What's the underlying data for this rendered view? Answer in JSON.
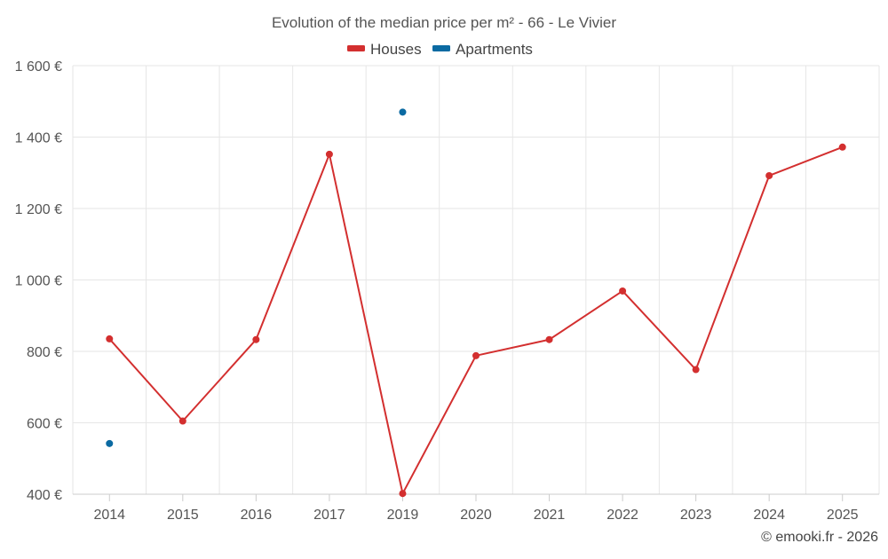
{
  "chart_data": {
    "type": "line",
    "title": "Evolution of the median price per m² - 66 - Le Vivier",
    "categories": [
      "2014",
      "2015",
      "2016",
      "2017",
      "2019",
      "2020",
      "2021",
      "2022",
      "2023",
      "2024",
      "2025"
    ],
    "ylim": [
      400,
      1600
    ],
    "yticks": [
      400,
      600,
      800,
      1000,
      1200,
      1400,
      1600
    ],
    "ytick_labels": [
      "400 €",
      "600 €",
      "800 €",
      "1 000 €",
      "1 200 €",
      "1 400 €",
      "1 600 €"
    ],
    "grid": true,
    "legend_position": "top-center",
    "series": [
      {
        "name": "Houses",
        "color": "#d32f2f",
        "values": [
          835,
          605,
          833,
          1352,
          402,
          788,
          833,
          969,
          749,
          1292,
          1372
        ]
      },
      {
        "name": "Apartments",
        "color": "#0b6aa2",
        "values": [
          542,
          null,
          null,
          null,
          1470,
          null,
          null,
          null,
          null,
          null,
          null
        ]
      }
    ],
    "credit": "© emooki.fr - 2026"
  }
}
